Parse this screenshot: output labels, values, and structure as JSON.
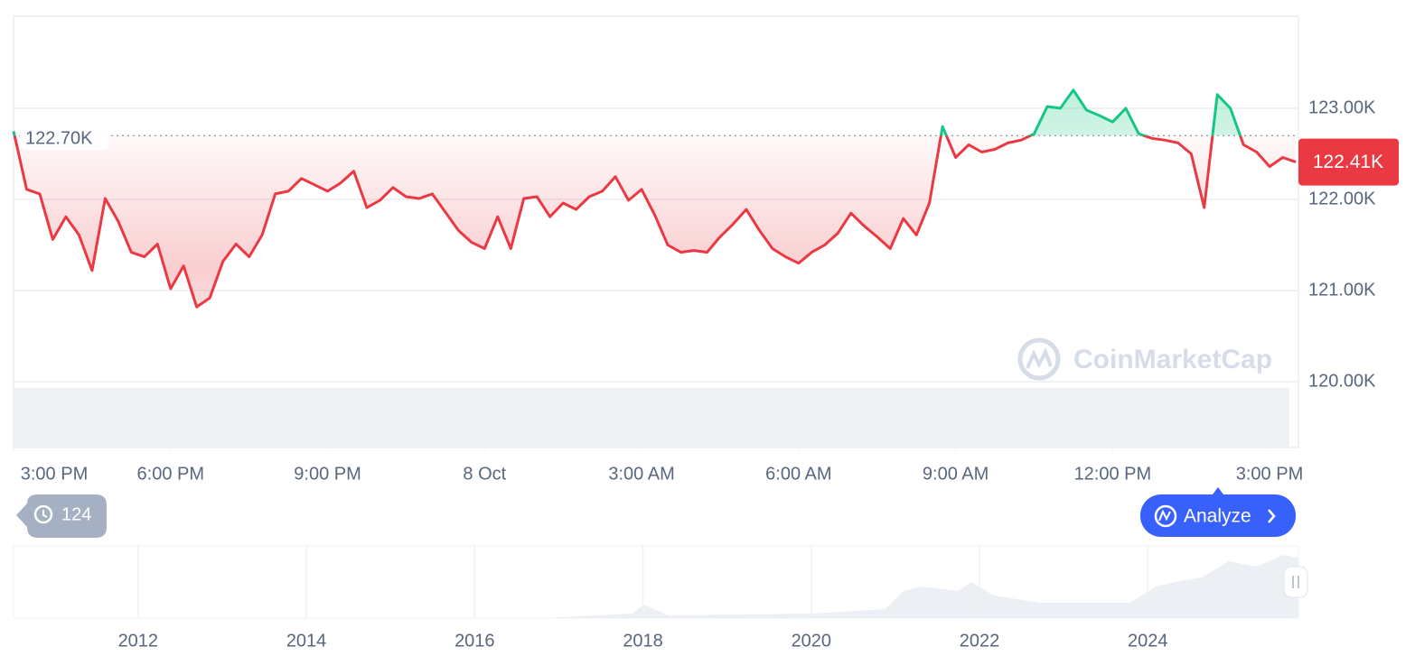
{
  "chart_data": {
    "type": "line",
    "x": [
      15,
      15.25,
      15.5,
      15.75,
      16,
      16.25,
      16.5,
      16.75,
      17,
      17.25,
      17.5,
      17.75,
      18,
      18.25,
      18.5,
      18.75,
      19,
      19.25,
      19.5,
      19.75,
      20,
      20.25,
      20.5,
      20.75,
      21,
      21.25,
      21.5,
      21.75,
      22,
      22.25,
      22.5,
      22.75,
      23,
      23.25,
      23.5,
      23.75,
      24,
      24.25,
      24.5,
      24.75,
      25,
      25.25,
      25.5,
      25.75,
      26,
      26.25,
      26.5,
      26.75,
      27,
      27.25,
      27.5,
      27.75,
      28,
      28.25,
      28.5,
      28.75,
      29,
      29.25,
      29.5,
      29.75,
      30,
      30.25,
      30.5,
      30.75,
      31,
      31.25,
      31.5,
      31.75,
      32,
      32.25,
      32.5,
      32.75,
      33,
      33.25,
      33.5,
      33.75,
      34,
      34.25,
      34.5,
      34.75,
      35,
      35.25,
      35.5,
      35.75,
      36,
      36.25,
      36.5,
      36.75,
      37,
      37.25,
      37.5,
      37.75,
      38,
      38.25,
      38.5,
      38.75,
      39,
      39.25,
      39.5
    ],
    "values": [
      122.75,
      122.11,
      122.06,
      121.56,
      121.81,
      121.61,
      121.22,
      122.01,
      121.76,
      121.42,
      121.37,
      121.51,
      121.02,
      121.27,
      120.82,
      120.92,
      121.32,
      121.51,
      121.37,
      121.61,
      122.06,
      122.09,
      122.23,
      122.16,
      122.09,
      122.18,
      122.31,
      121.91,
      121.99,
      122.13,
      122.03,
      122.01,
      122.06,
      121.86,
      121.66,
      121.53,
      121.46,
      121.81,
      121.46,
      122.01,
      122.03,
      121.81,
      121.96,
      121.89,
      122.03,
      122.09,
      122.25,
      121.99,
      122.11,
      121.83,
      121.5,
      121.42,
      121.44,
      121.42,
      121.59,
      121.73,
      121.89,
      121.66,
      121.46,
      121.37,
      121.3,
      121.42,
      121.5,
      121.63,
      121.85,
      121.71,
      121.59,
      121.46,
      121.79,
      121.61,
      121.96,
      122.8,
      122.46,
      122.6,
      122.52,
      122.55,
      122.62,
      122.65,
      122.72,
      123.02,
      123.0,
      123.2,
      122.98,
      122.92,
      122.85,
      123.0,
      122.72,
      122.67,
      122.65,
      122.62,
      122.5,
      121.91,
      123.15,
      123.0,
      122.6,
      122.52,
      122.36,
      122.46,
      122.41
    ],
    "up_color": "#16c784",
    "down_color": "#ea3943",
    "xlim": [
      15,
      39.55
    ],
    "xticks": [
      {
        "value": 15,
        "label": "3:00 PM"
      },
      {
        "value": 18,
        "label": "6:00 PM"
      },
      {
        "value": 21,
        "label": "9:00 PM"
      },
      {
        "value": 24,
        "label": "8 Oct"
      },
      {
        "value": 27,
        "label": "3:00 AM"
      },
      {
        "value": 30,
        "label": "6:00 AM"
      },
      {
        "value": 33,
        "label": "9:00 AM"
      },
      {
        "value": 36,
        "label": "12:00 PM"
      },
      {
        "value": 39,
        "label": "3:00 PM"
      }
    ],
    "ylim": [
      120,
      124
    ],
    "yticks": [
      {
        "value": 120,
        "label": "120.00K"
      },
      {
        "value": 121,
        "label": "121.00K"
      },
      {
        "value": 122,
        "label": "122.00K"
      },
      {
        "value": 123,
        "label": "123.00K"
      }
    ],
    "grid": true,
    "reference": {
      "value": 122.7,
      "label": "122.70K"
    },
    "current": {
      "value": 122.41,
      "label": "122.41K"
    },
    "navigator": {
      "xlim": [
        2010.52,
        2025.79
      ],
      "xticks": [
        2012,
        2014,
        2016,
        2018,
        2020,
        2022,
        2024
      ]
    }
  },
  "ui": {
    "watermark": "CoinMarketCap",
    "history_count": "124",
    "analyze_button": "Analyze"
  }
}
